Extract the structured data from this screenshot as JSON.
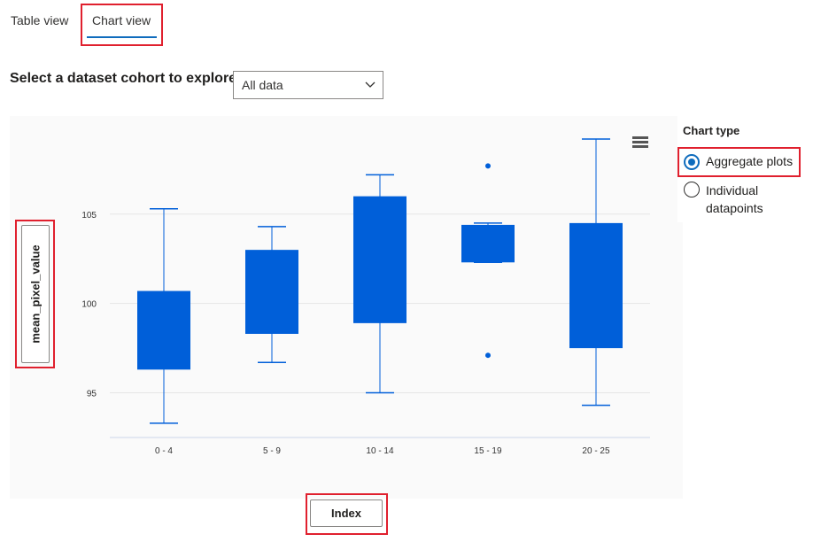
{
  "tabs": {
    "table_view": "Table view",
    "chart_view": "Chart view"
  },
  "cohort": {
    "label": "Select a dataset cohort to explore",
    "selected": "All data"
  },
  "chart_type": {
    "label": "Chart type",
    "options": [
      "Aggregate plots",
      "Individual datapoints"
    ],
    "selected": "Aggregate plots"
  },
  "axes": {
    "y_button": "mean_pixel_value",
    "x_button": "Index"
  },
  "colors": {
    "accent": "#0f6cbd",
    "box_fill": "#005fd9",
    "highlight": "#e0202e"
  },
  "chart_data": {
    "type": "box",
    "categories": [
      "0 - 4",
      "5 - 9",
      "10 - 14",
      "15 - 19",
      "20 - 25"
    ],
    "y_ticks": [
      95,
      100,
      105
    ],
    "ylim": [
      92.5,
      109.5
    ],
    "grid": true,
    "boxes": [
      {
        "category": "0 - 4",
        "min": 93.3,
        "q1": 96.3,
        "q3": 100.7,
        "max": 105.3,
        "outliers": []
      },
      {
        "category": "5 - 9",
        "min": 96.7,
        "q1": 98.3,
        "q3": 103.0,
        "max": 104.3,
        "outliers": []
      },
      {
        "category": "10 - 14",
        "min": 95.0,
        "q1": 98.9,
        "q3": 106.0,
        "max": 107.2,
        "outliers": []
      },
      {
        "category": "15 - 19",
        "min": 102.3,
        "q1": 102.3,
        "q3": 104.4,
        "max": 104.5,
        "outliers": [
          107.7,
          97.1
        ]
      },
      {
        "category": "20 - 25",
        "min": 94.3,
        "q1": 97.5,
        "q3": 104.5,
        "max": 109.2,
        "outliers": []
      }
    ]
  }
}
